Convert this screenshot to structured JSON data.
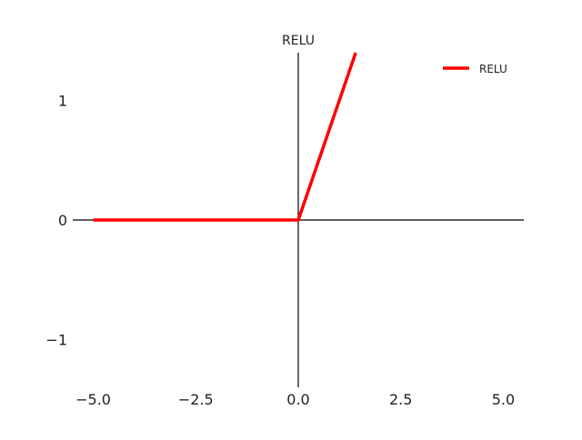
{
  "chart_data": {
    "type": "line",
    "title": "RELU",
    "xlabel": "",
    "ylabel": "",
    "xlim": [
      -5.5,
      5.5
    ],
    "ylim": [
      -1.4,
      1.4
    ],
    "xticks": [
      -5.0,
      -2.5,
      0.0,
      2.5,
      5.0
    ],
    "xtick_labels": [
      "−5.0",
      "−2.5",
      "0.0",
      "2.5",
      "5.0"
    ],
    "yticks": [
      -1,
      0,
      1
    ],
    "ytick_labels": [
      "−1",
      "0",
      "1"
    ],
    "grid": false,
    "legend_position": "top-right",
    "spines": "centered-at-origin",
    "series": [
      {
        "name": "RELU",
        "color": "#ff0000",
        "x": [
          -5.0,
          0.0,
          1.4
        ],
        "y": [
          0.0,
          0.0,
          1.4
        ]
      }
    ]
  }
}
